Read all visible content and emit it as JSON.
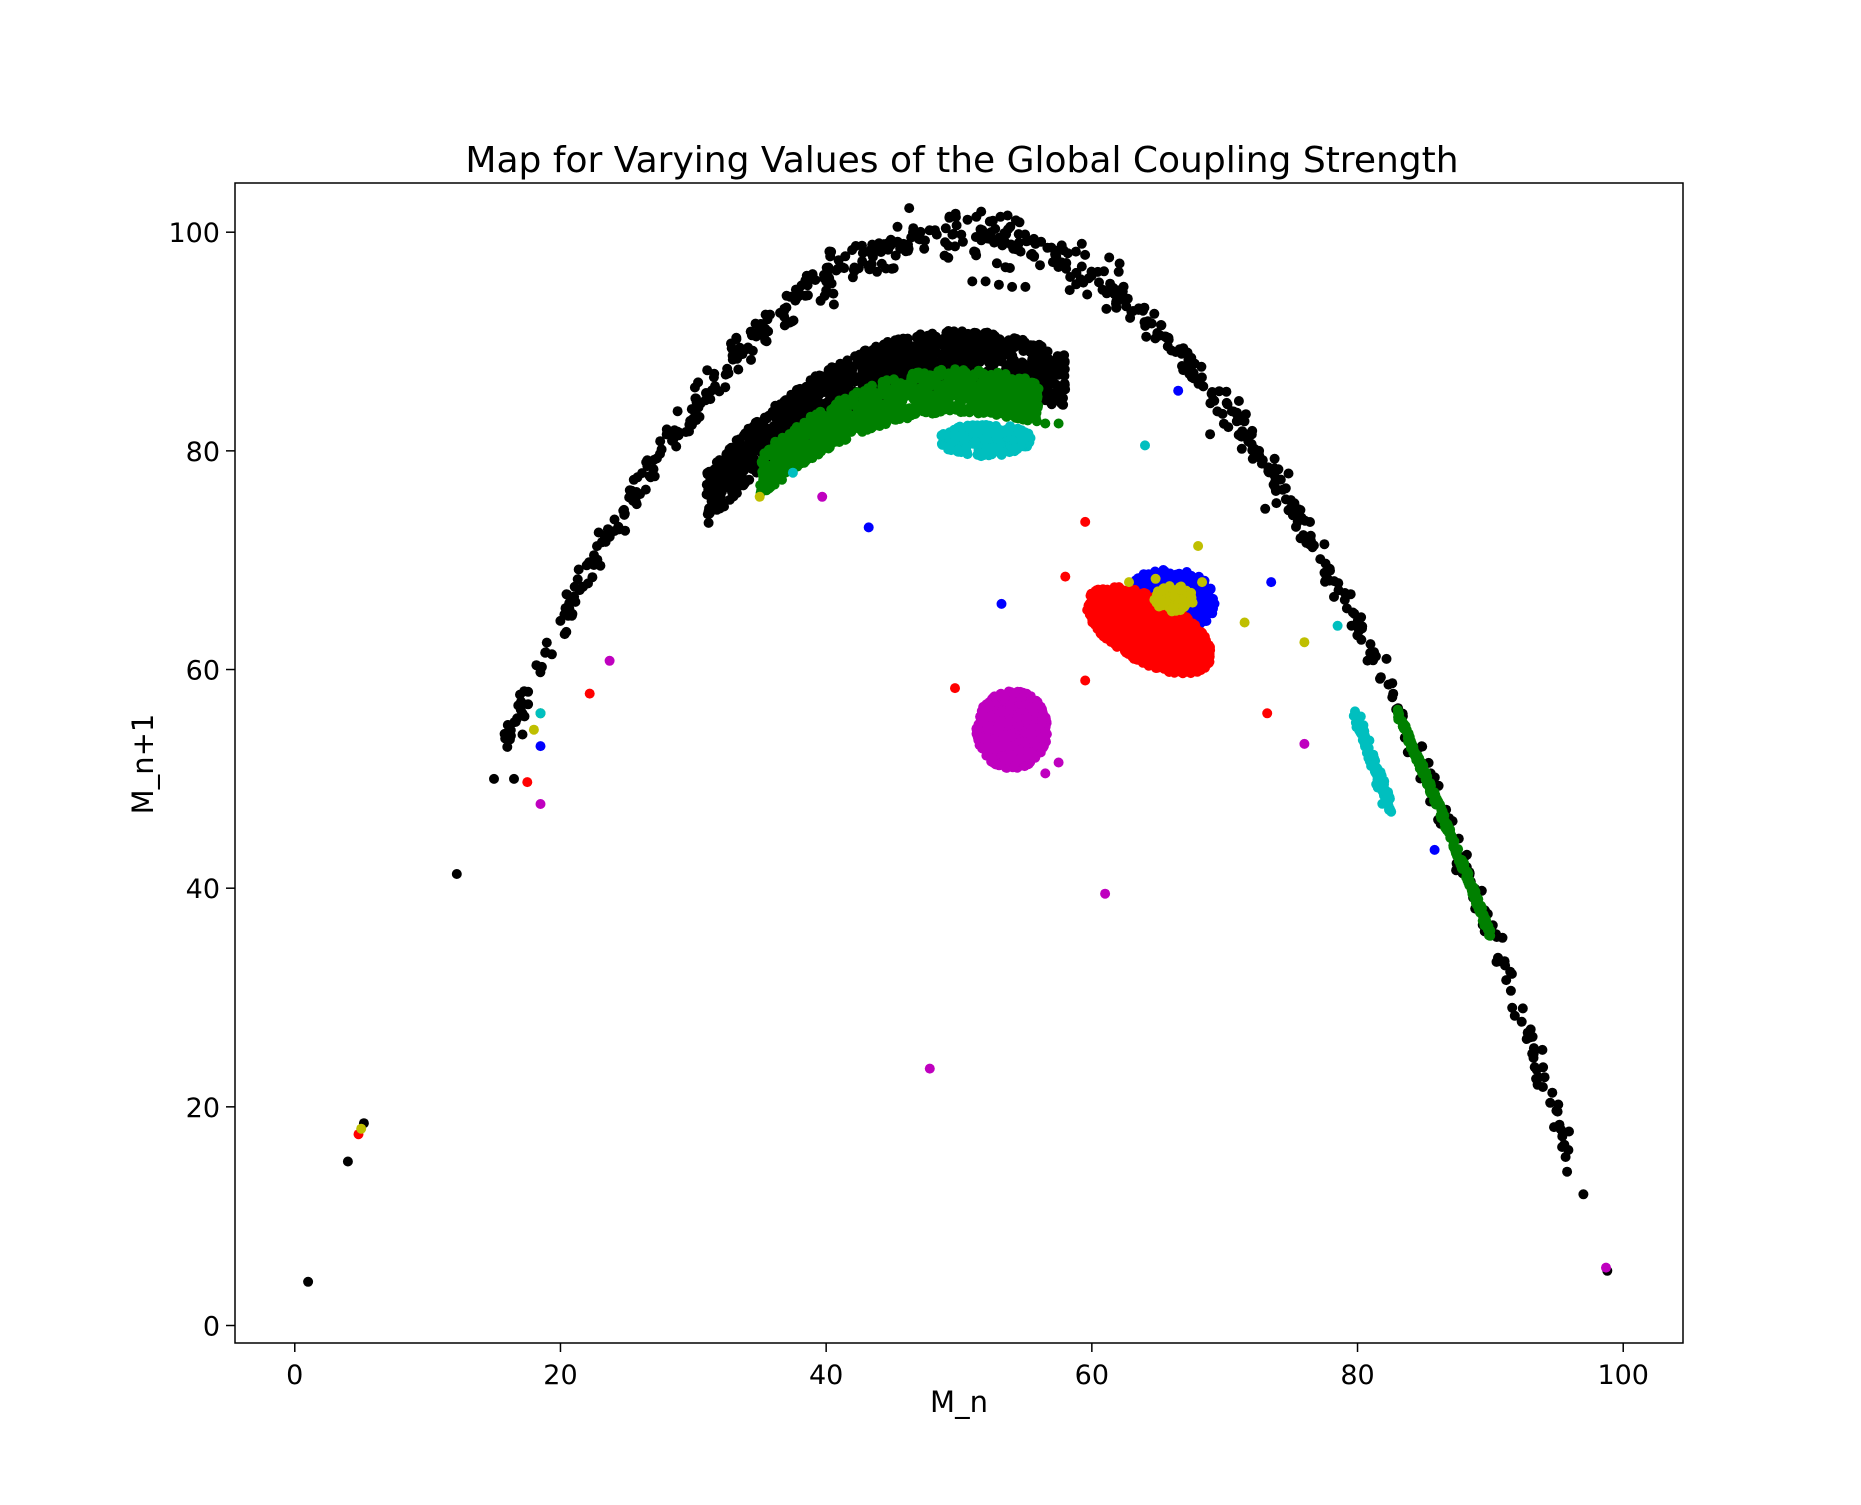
{
  "chart_data": {
    "type": "scatter",
    "title": "Map for Varying Values of the Global Coupling Strength",
    "xlabel": "M_n",
    "ylabel": "M_n+1",
    "xlim": [
      -4.5,
      104.5
    ],
    "ylim": [
      -1.6,
      104.5
    ],
    "xticks": [
      0,
      20,
      40,
      60,
      80,
      100
    ],
    "yticks": [
      0,
      20,
      40,
      60,
      80,
      100
    ],
    "grid": false,
    "legend": "none",
    "series": [
      {
        "color": "#000000",
        "description_points": "parabola map y = 100 - (x - 50)^2 / 25 with scatter",
        "curve": {
          "a": 100,
          "h": 50,
          "k": 25,
          "x_range": [
            15.5,
            96.0
          ],
          "spread": 1.0,
          "count": 700
        },
        "bands": [
          {
            "x_range": [
              31,
              58
            ],
            "y_center_offset": -11.5,
            "thickness": 5.0,
            "count": 1600
          }
        ],
        "points": [
          [
            1,
            4
          ],
          [
            4,
            15
          ],
          [
            5.2,
            18.5
          ],
          [
            12.2,
            41.3
          ],
          [
            49.7,
            98.7
          ],
          [
            51,
            95.5
          ],
          [
            52,
            95.5
          ],
          [
            53,
            95.2
          ],
          [
            53.5,
            96.8
          ],
          [
            54,
            95
          ],
          [
            55,
            95
          ],
          [
            97,
            12
          ],
          [
            98.8,
            5
          ],
          [
            52.3,
            84
          ],
          [
            16.5,
            50
          ],
          [
            15,
            50
          ]
        ]
      },
      {
        "color": "#008000",
        "bands": [
          {
            "x_range": [
              35,
              56
            ],
            "y_center_offset": -14.5,
            "thickness": 4.0,
            "count": 900
          },
          {
            "x_range": [
              83,
              90
            ],
            "y_center_offset": -0.8,
            "thickness": 1.0,
            "count": 250
          }
        ],
        "points": [
          [
            56.5,
            82.5
          ],
          [
            57.5,
            82.5
          ],
          [
            18.5,
            56
          ]
        ]
      },
      {
        "color": "#00bfbf",
        "clusters": [
          {
            "cx": 52,
            "cy": 81,
            "rx": 3.5,
            "ry": 1.5,
            "count": 260
          }
        ],
        "lines": [
          {
            "x0": 79.8,
            "y0": 56,
            "x1": 82.5,
            "y1": 47.5,
            "spread": 0.35,
            "count": 120
          }
        ],
        "points": [
          [
            37.5,
            78
          ],
          [
            64,
            80.5
          ],
          [
            18.5,
            56
          ],
          [
            78.5,
            64
          ]
        ]
      },
      {
        "color": "#0000ff",
        "clusters": [
          {
            "cx": 65.8,
            "cy": 66.2,
            "rx": 3.5,
            "ry": 3.0,
            "count": 420
          }
        ],
        "points": [
          [
            43.2,
            73
          ],
          [
            53.2,
            66
          ],
          [
            66.5,
            85.5
          ],
          [
            73.5,
            68
          ],
          [
            18.5,
            53
          ],
          [
            68,
            60.5
          ],
          [
            85.8,
            43.5
          ]
        ]
      },
      {
        "color": "#ff0000",
        "clusters": [
          {
            "cx": 64.3,
            "cy": 63.6,
            "rx": 5.5,
            "ry": 2.8,
            "angle_deg": -37,
            "count": 1100
          }
        ],
        "points": [
          [
            59.5,
            73.5
          ],
          [
            58,
            68.5
          ],
          [
            59.5,
            59
          ],
          [
            49.7,
            58.3
          ],
          [
            22.2,
            57.8
          ],
          [
            17.5,
            49.7
          ],
          [
            73.2,
            56
          ],
          [
            4.8,
            17.5
          ]
        ]
      },
      {
        "color": "#bfbf00",
        "clusters": [
          {
            "cx": 66.2,
            "cy": 66.5,
            "rx": 1.5,
            "ry": 1.2,
            "count": 90
          }
        ],
        "points": [
          [
            35,
            75.8
          ],
          [
            68,
            71.3
          ],
          [
            71.5,
            64.3
          ],
          [
            76,
            62.5
          ],
          [
            62.8,
            68
          ],
          [
            64.8,
            68.3
          ],
          [
            68.3,
            68
          ],
          [
            18,
            54.5
          ],
          [
            5,
            18
          ]
        ]
      },
      {
        "color": "#bf00bf",
        "clusters": [
          {
            "cx": 54,
            "cy": 54.5,
            "rx": 2.7,
            "ry": 3.6,
            "count": 700
          }
        ],
        "points": [
          [
            39.7,
            75.8
          ],
          [
            23.7,
            60.8
          ],
          [
            18.5,
            47.7
          ],
          [
            61,
            39.5
          ],
          [
            47.8,
            23.5
          ],
          [
            76,
            53.2
          ],
          [
            57.5,
            51.5
          ],
          [
            56.5,
            50.5
          ],
          [
            98.7,
            5.3
          ]
        ]
      }
    ]
  }
}
